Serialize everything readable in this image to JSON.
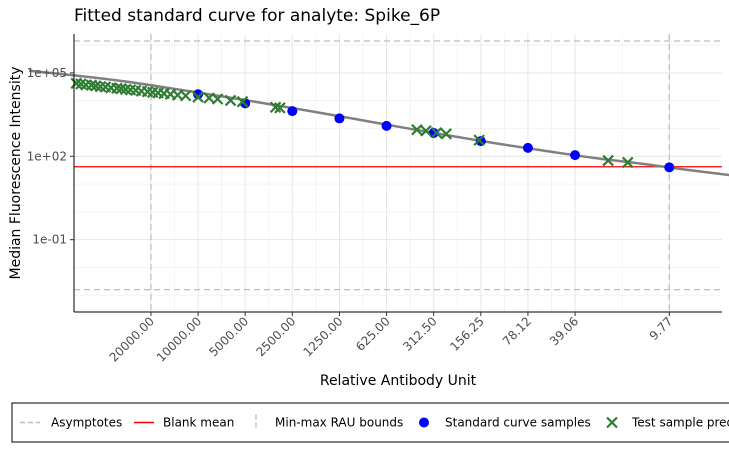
{
  "chart_data": {
    "type": "scatter",
    "title": "Fitted standard curve for analyte: Spike_6P",
    "xlabel": "Relative Antibody Unit",
    "ylabel": "Median Fluorescence Intensity",
    "x_scale": "log",
    "x_reversed": true,
    "y_scale": "log",
    "x_ticks": [
      "20000.00",
      "10000.00",
      "5000.00",
      "2500.00",
      "1250.00",
      "625.00",
      "312.50",
      "156.25",
      "78.12",
      "39.06",
      "9.77"
    ],
    "y_ticks": [
      "1e-01",
      "1e+02",
      "1e+05"
    ],
    "ylim": [
      0.00025,
      2500000
    ],
    "xlim": [
      4.5,
      62000
    ],
    "asymptotes": [
      1400000,
      0.0016
    ],
    "blank_mean": 42,
    "rau_bounds": [
      20000,
      9.77
    ],
    "fitted_curve": [
      {
        "x": 120000,
        "y": 120000
      },
      {
        "x": 60000,
        "y": 80000
      },
      {
        "x": 30000,
        "y": 50000
      },
      {
        "x": 15000,
        "y": 28000
      },
      {
        "x": 8000,
        "y": 16000
      },
      {
        "x": 4000,
        "y": 8500
      },
      {
        "x": 2000,
        "y": 4400
      },
      {
        "x": 1000,
        "y": 2200
      },
      {
        "x": 500,
        "y": 1100
      },
      {
        "x": 250,
        "y": 560
      },
      {
        "x": 125,
        "y": 290
      },
      {
        "x": 62,
        "y": 160
      },
      {
        "x": 31,
        "y": 90
      },
      {
        "x": 15,
        "y": 55
      },
      {
        "x": 8,
        "y": 34
      },
      {
        "x": 4,
        "y": 21
      },
      {
        "x": 2.3,
        "y": 15
      }
    ],
    "series": [
      {
        "name": "Standard curve samples",
        "color": "#0000ff",
        "marker": "circle",
        "points": [
          {
            "x": 10000,
            "y": 17000
          },
          {
            "x": 5000,
            "y": 8000
          },
          {
            "x": 2500,
            "y": 4200
          },
          {
            "x": 1250,
            "y": 2300
          },
          {
            "x": 625,
            "y": 1240
          },
          {
            "x": 312.5,
            "y": 690
          },
          {
            "x": 156.25,
            "y": 350
          },
          {
            "x": 78.12,
            "y": 200
          },
          {
            "x": 39.06,
            "y": 110
          },
          {
            "x": 9.77,
            "y": 40
          }
        ]
      },
      {
        "name": "Test sample predictions",
        "color": "#2e7d32",
        "marker": "x",
        "points": [
          {
            "x": 60000,
            "y": 42000
          },
          {
            "x": 56000,
            "y": 40000
          },
          {
            "x": 52000,
            "y": 37000
          },
          {
            "x": 48000,
            "y": 36000
          },
          {
            "x": 45000,
            "y": 34000
          },
          {
            "x": 42000,
            "y": 32000
          },
          {
            "x": 39000,
            "y": 31000
          },
          {
            "x": 36000,
            "y": 29000
          },
          {
            "x": 33000,
            "y": 28000
          },
          {
            "x": 31000,
            "y": 27000
          },
          {
            "x": 29000,
            "y": 25500
          },
          {
            "x": 27000,
            "y": 24500
          },
          {
            "x": 25000,
            "y": 23500
          },
          {
            "x": 23000,
            "y": 22000
          },
          {
            "x": 21000,
            "y": 21000
          },
          {
            "x": 19500,
            "y": 20000
          },
          {
            "x": 18000,
            "y": 19000
          },
          {
            "x": 16500,
            "y": 18000
          },
          {
            "x": 15000,
            "y": 17000
          },
          {
            "x": 13500,
            "y": 16000
          },
          {
            "x": 12000,
            "y": 15000
          },
          {
            "x": 10000,
            "y": 13500
          },
          {
            "x": 8500,
            "y": 12500
          },
          {
            "x": 7500,
            "y": 11500
          },
          {
            "x": 6200,
            "y": 10200
          },
          {
            "x": 5200,
            "y": 9200
          },
          {
            "x": 3200,
            "y": 5800
          },
          {
            "x": 3000,
            "y": 5500
          },
          {
            "x": 400,
            "y": 900
          },
          {
            "x": 350,
            "y": 820
          },
          {
            "x": 300,
            "y": 700
          },
          {
            "x": 260,
            "y": 640
          },
          {
            "x": 160,
            "y": 380
          },
          {
            "x": 24,
            "y": 70
          },
          {
            "x": 18,
            "y": 60
          }
        ]
      }
    ],
    "legend": {
      "position": "bottom",
      "entries": [
        {
          "label": "Asymptotes",
          "style": "dashed-horizontal",
          "color": "#bdbdbd"
        },
        {
          "label": "Blank mean",
          "style": "line",
          "color": "#ff0000"
        },
        {
          "label": "Min-max RAU bounds",
          "style": "dashed-vertical",
          "color": "#bdbdbd"
        },
        {
          "label": "Standard curve samples",
          "style": "circle",
          "color": "#0000ff"
        },
        {
          "label": "Test sample predictions",
          "style": "x",
          "color": "#2e7d32"
        }
      ]
    },
    "curve_color": "#808080",
    "blank_color": "#ff0000",
    "guide_color": "#bdbdbd"
  }
}
